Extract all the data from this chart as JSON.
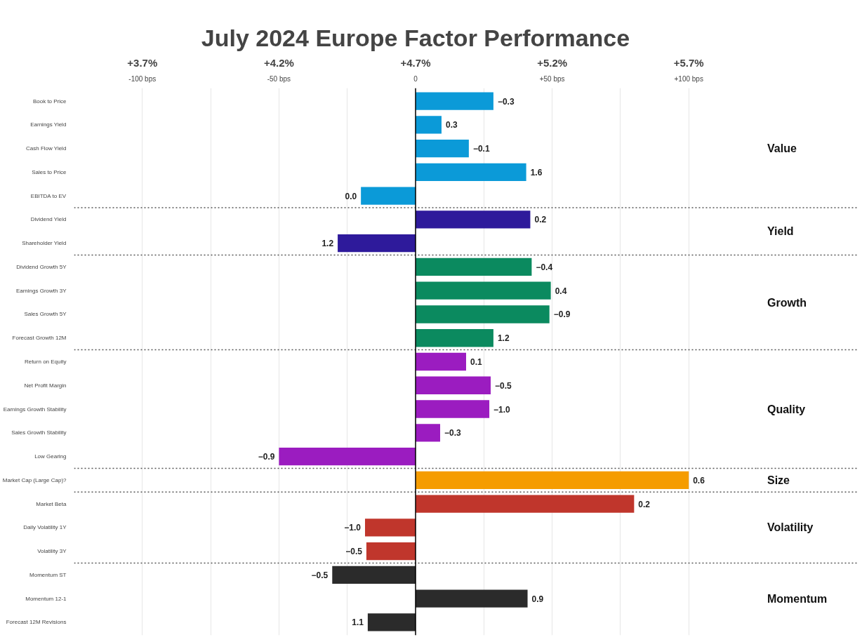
{
  "chart_data": {
    "type": "bar",
    "orientation": "horizontal",
    "title": "July 2024 Europe Factor Performance",
    "categories": [
      "Book to Price",
      "Earnings Yield",
      "Cash Flow Yield",
      "Sales to Price",
      "EBITDA to EV",
      "Dividend Yield",
      "Shareholder Yield",
      "Dividend Growth 5Y",
      "Earnings Growth 3Y",
      "Sales Growth 5Y",
      "Forecast Growth 12M",
      "Return on Equity",
      "Net Profit Margin",
      "Earnings Growth Stability",
      "Sales Growth Stability",
      "Low Gearing",
      "Market Cap (Large Cap)?",
      "Market Beta",
      "Daily Volatility 1Y",
      "Volatility 3Y",
      "Momentum ST",
      "Momentum 12-1",
      "Forecast 12M Revisions"
    ],
    "series": [
      {
        "name": "Value",
        "color": "#0b9ad8",
        "values": [
          28.5,
          9.5,
          19.5,
          40.5,
          -20,
          null,
          null,
          null,
          null,
          null,
          null,
          null,
          null,
          null,
          null,
          null,
          null,
          null,
          null,
          null,
          null,
          null,
          null
        ]
      },
      {
        "name": "Yield",
        "color": "#2e1a9b",
        "values": [
          null,
          null,
          null,
          null,
          null,
          42,
          -28.5,
          null,
          null,
          null,
          null,
          null,
          null,
          null,
          null,
          null,
          null,
          null,
          null,
          null,
          null,
          null,
          null
        ]
      },
      {
        "name": "Growth",
        "color": "#0b8a5f",
        "values": [
          null,
          null,
          null,
          null,
          null,
          null,
          null,
          42.5,
          49.5,
          49,
          28.5,
          null,
          null,
          null,
          null,
          null,
          null,
          null,
          null,
          null,
          null,
          null,
          null
        ]
      },
      {
        "name": "Quality",
        "color": "#9b1cc0",
        "values": [
          null,
          null,
          null,
          null,
          null,
          null,
          null,
          null,
          null,
          null,
          null,
          18.5,
          27.5,
          27,
          9,
          -50,
          null,
          null,
          null,
          null,
          null,
          null,
          null
        ]
      },
      {
        "name": "Size",
        "color": "#f59c00",
        "values": [
          null,
          null,
          null,
          null,
          null,
          null,
          null,
          null,
          null,
          null,
          null,
          null,
          null,
          null,
          null,
          null,
          100,
          null,
          null,
          null,
          null,
          null,
          null
        ]
      },
      {
        "name": "Volatility",
        "color": "#c0362c",
        "values": [
          null,
          null,
          null,
          null,
          null,
          null,
          null,
          null,
          null,
          null,
          null,
          null,
          null,
          null,
          null,
          null,
          null,
          80,
          -18.5,
          -18,
          null,
          null,
          null
        ]
      },
      {
        "name": "Momentum",
        "color": "#2b2b2b",
        "values": [
          null,
          null,
          null,
          null,
          null,
          null,
          null,
          null,
          null,
          null,
          null,
          null,
          null,
          null,
          null,
          null,
          null,
          null,
          null,
          null,
          -30.5,
          41,
          -17.5
        ]
      }
    ],
    "annotations": [
      {
        "text": "−0.3",
        "x": 28.5,
        "y": "Book to Price"
      },
      {
        "text": "0.3",
        "x": 9.5,
        "y": "Earnings Yield"
      },
      {
        "text": "−0.1",
        "x": 19.5,
        "y": "Cash Flow Yield"
      },
      {
        "text": "1.6",
        "x": 40.5,
        "y": "Sales to Price"
      },
      {
        "text": "0.0",
        "x": -20,
        "y": "EBITDA to EV"
      },
      {
        "text": "0.2",
        "x": 42,
        "y": "Dividend Yield"
      },
      {
        "text": "1.2",
        "x": -28.5,
        "y": "Shareholder Yield"
      },
      {
        "text": "−0.4",
        "x": 42.5,
        "y": "Dividend Growth 5Y"
      },
      {
        "text": "0.4",
        "x": 49.5,
        "y": "Earnings Growth 3Y"
      },
      {
        "text": "−0.9",
        "x": 49,
        "y": "Sales Growth 5Y"
      },
      {
        "text": "1.2",
        "x": 28.5,
        "y": "Forecast Growth 12M"
      },
      {
        "text": "0.1",
        "x": 18.5,
        "y": "Return on Equity"
      },
      {
        "text": "−0.5",
        "x": 27.5,
        "y": "Net Profit Margin"
      },
      {
        "text": "−1.0",
        "x": 27,
        "y": "Earnings Growth Stability"
      },
      {
        "text": "−0.3",
        "x": 9,
        "y": "Sales Growth Stability"
      },
      {
        "text": "−0.9",
        "x": -50,
        "y": "Low Gearing"
      },
      {
        "text": "0.6",
        "x": 100,
        "y": "Market Cap (Large Cap)?"
      },
      {
        "text": "0.2",
        "x": 80,
        "y": "Market Beta"
      },
      {
        "text": "−1.0",
        "x": -18.5,
        "y": "Daily Volatility 1Y"
      },
      {
        "text": "−0.5",
        "x": -18,
        "y": "Volatility 3Y"
      },
      {
        "text": "−0.5",
        "x": -30.5,
        "y": "Momentum ST"
      },
      {
        "text": "0.9",
        "x": 41,
        "y": "Momentum 12-1"
      },
      {
        "text": "1.1",
        "x": -17.5,
        "y": "Forecast 12M Revisions"
      }
    ],
    "xlim": [
      -125,
      125
    ],
    "xticks": [
      {
        "value": -100,
        "label": "-100 bps"
      },
      {
        "value": -75,
        "label": null
      },
      {
        "value": -50,
        "label": "-50 bps"
      },
      {
        "value": -25,
        "label": null
      },
      0,
      {
        "value": 25,
        "label": null
      },
      {
        "value": 50,
        "label": "+50 bps"
      },
      {
        "value": 75,
        "label": null
      },
      {
        "value": 100,
        "label": "+100 bps"
      }
    ],
    "x2lim": [
      3.45,
      5.95
    ],
    "x2ticks": [
      {
        "value": 3.7,
        "label": "+3.7%"
      },
      {
        "value": 4.2,
        "label": "+4.2%"
      },
      {
        "value": 4.7,
        "label": "+4.7%"
      },
      {
        "value": 5.2,
        "label": "+5.2%"
      },
      {
        "value": 5.7,
        "label": "+5.7%"
      }
    ],
    "grid": "x"
  }
}
